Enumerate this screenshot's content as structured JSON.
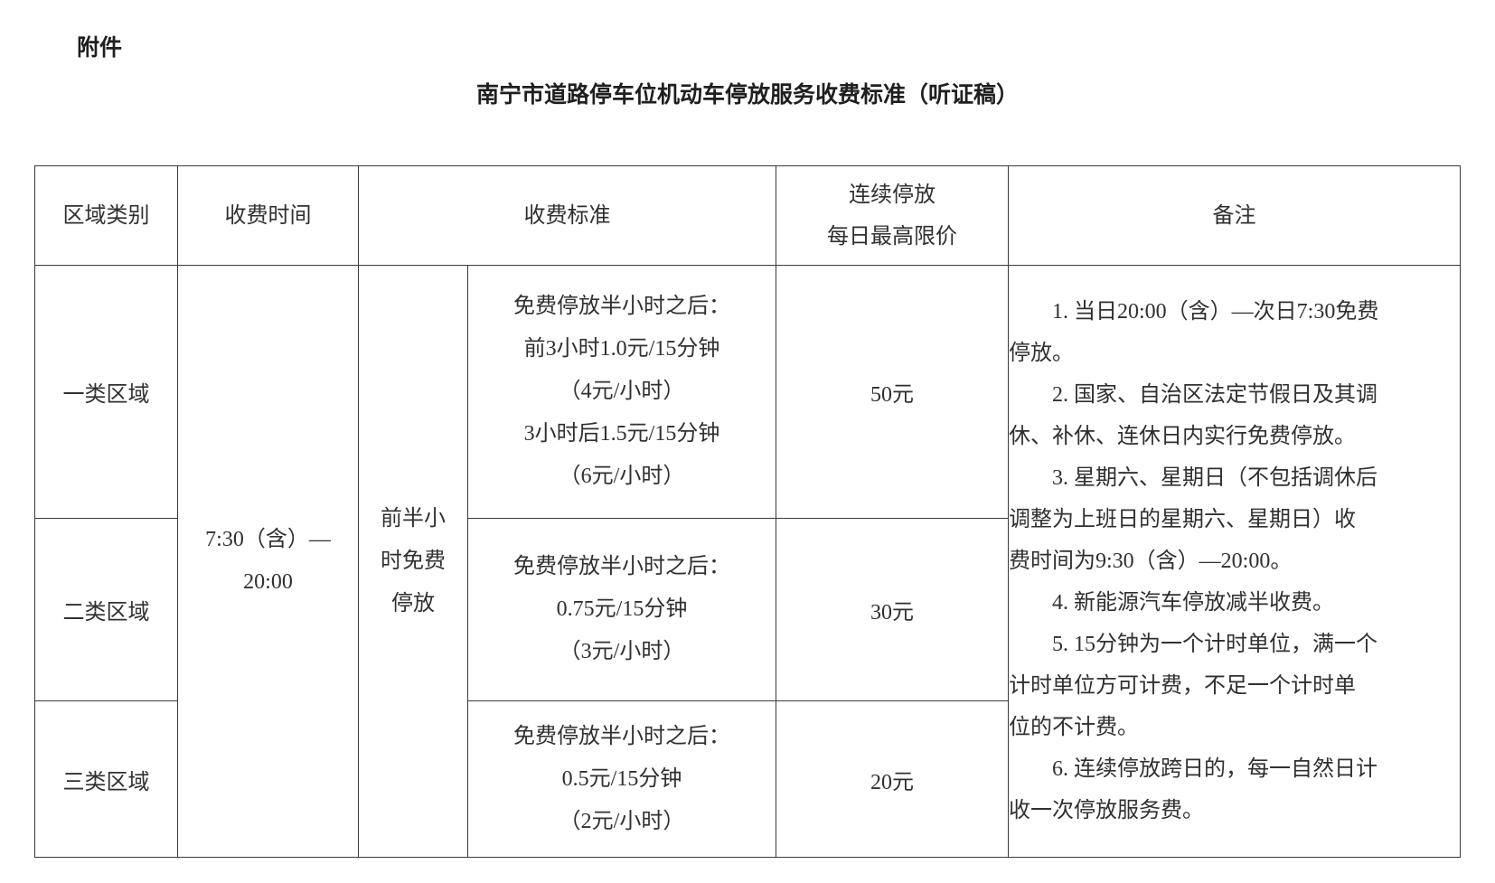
{
  "page": {
    "attachment_label": "附件",
    "title": "南宁市道路停车位机动车停放服务收费标准（听证稿）",
    "colors": {
      "text": "#303030",
      "border": "#3a3a3a",
      "background": "#ffffff"
    }
  },
  "table": {
    "headers": {
      "area": "区域类别",
      "time": "收费时间",
      "standard": "收费标准",
      "daily_cap": "连续停放\n每日最高限价",
      "remarks": "备注"
    },
    "merged": {
      "charge_time": "7:30（含）—\n20:00",
      "free_first_half_hour": "前半小\n时免费\n停放"
    },
    "rows": [
      {
        "area": "一类区域",
        "standard": "免费停放半小时之后：\n前3小时1.0元/15分钟\n（4元/小时）\n3小时后1.5元/15分钟\n（6元/小时）",
        "daily_cap": "50元"
      },
      {
        "area": "二类区域",
        "standard": "免费停放半小时之后：\n0.75元/15分钟\n（3元/小时）",
        "daily_cap": "30元"
      },
      {
        "area": "三类区域",
        "standard": "免费停放半小时之后：\n0.5元/15分钟\n（2元/小时）",
        "daily_cap": "20元"
      }
    ],
    "remarks": [
      "1. 当日20:00（含）—次日7:30免费\n停放。",
      "2. 国家、自治区法定节假日及其调\n休、补休、连休日内实行免费停放。",
      "3. 星期六、星期日（不包括调休后\n调整为上班日的星期六、星期日）收\n费时间为9:30（含）—20:00。",
      "4. 新能源汽车停放减半收费。",
      "5. 15分钟为一个计时单位，满一个\n计时单位方可计费，不足一个计时单\n位的不计费。",
      "6. 连续停放跨日的，每一自然日计\n收一次停放服务费。"
    ]
  }
}
